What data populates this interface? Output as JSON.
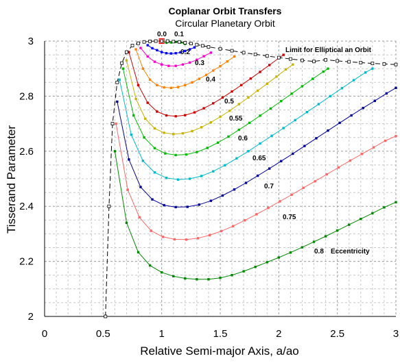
{
  "chart_data": {
    "type": "line",
    "title": "Coplanar Orbit Transfers",
    "subtitle": "Circular Planetary Orbit",
    "xlabel": "Relative Semi-major Axis, a/ao",
    "ylabel": "Tisserand Parameter",
    "xlim": [
      0,
      3
    ],
    "ylim": [
      2,
      3
    ],
    "xticks": [
      "0",
      "0.5",
      "1",
      "1.5",
      "2",
      "2.5",
      "3"
    ],
    "yticks": [
      "2",
      "2.2",
      "2.4",
      "2.6",
      "2.8",
      "3"
    ],
    "grid": true,
    "limit_label": "Limit for Elliptical an Orbit",
    "eccentricity_label": "Eccentricity",
    "series": [
      {
        "name": "0.0",
        "color": "#ff0000",
        "x": [
          1.0
        ],
        "y": [
          3.0
        ]
      },
      {
        "name": "0.1",
        "color": "#00aa00",
        "x": [
          1.0,
          1.04,
          1.08,
          1.12,
          1.16,
          1.2
        ],
        "y": [
          3.0,
          2.994,
          2.995,
          2.997,
          2.995,
          2.99
        ]
      },
      {
        "name": "0.2",
        "color": "#0000ff",
        "x": [
          0.88,
          0.92,
          0.96,
          1.0,
          1.04,
          1.08,
          1.12,
          1.16,
          1.2,
          1.24,
          1.28
        ],
        "y": [
          2.985,
          2.974,
          2.967,
          2.96,
          2.956,
          2.955,
          2.956,
          2.959,
          2.964,
          2.97,
          2.977
        ]
      },
      {
        "name": "0.3",
        "color": "#ff00cc",
        "x": [
          0.82,
          0.88,
          0.94,
          1.0,
          1.06,
          1.12,
          1.18,
          1.24,
          1.3,
          1.36,
          1.42
        ],
        "y": [
          2.975,
          2.944,
          2.925,
          2.915,
          2.91,
          2.91,
          2.915,
          2.922,
          2.932,
          2.945,
          2.958
        ]
      },
      {
        "name": "0.4",
        "color": "#ff8000",
        "x": [
          0.78,
          0.84,
          0.9,
          0.96,
          1.02,
          1.08,
          1.14,
          1.2,
          1.26,
          1.32,
          1.38,
          1.44,
          1.5,
          1.56,
          1.62
        ],
        "y": [
          2.97,
          2.9,
          2.86,
          2.84,
          2.832,
          2.83,
          2.833,
          2.84,
          2.85,
          2.863,
          2.877,
          2.893,
          2.909,
          2.926,
          2.944
        ]
      },
      {
        "name": "0.5",
        "color": "#cc0000",
        "x": [
          0.72,
          0.8,
          0.88,
          0.96,
          1.04,
          1.12,
          1.2,
          1.28,
          1.36,
          1.44,
          1.52,
          1.6,
          1.68,
          1.76,
          1.84,
          1.92,
          2.0,
          2.04
        ],
        "y": [
          2.96,
          2.84,
          2.776,
          2.744,
          2.73,
          2.727,
          2.731,
          2.741,
          2.756,
          2.774,
          2.795,
          2.817,
          2.84,
          2.864,
          2.888,
          2.913,
          2.938,
          2.95
        ]
      },
      {
        "name": "0.55",
        "color": "#c8b400",
        "x": [
          0.7,
          0.78,
          0.86,
          0.94,
          1.02,
          1.1,
          1.18,
          1.26,
          1.34,
          1.42,
          1.5,
          1.58,
          1.66,
          1.74,
          1.82,
          1.9,
          1.98,
          2.06,
          2.12
        ],
        "y": [
          2.93,
          2.79,
          2.718,
          2.683,
          2.667,
          2.662,
          2.665,
          2.673,
          2.687,
          2.705,
          2.725,
          2.747,
          2.771,
          2.795,
          2.82,
          2.845,
          2.871,
          2.897,
          2.915
        ]
      },
      {
        "name": "0.6",
        "color": "#00bb00",
        "x": [
          0.67,
          0.76,
          0.85,
          0.94,
          1.03,
          1.12,
          1.21,
          1.3,
          1.39,
          1.48,
          1.57,
          1.66,
          1.75,
          1.84,
          1.93,
          2.02,
          2.11,
          2.2,
          2.29,
          2.38,
          2.42
        ],
        "y": [
          2.9,
          2.73,
          2.65,
          2.611,
          2.592,
          2.586,
          2.588,
          2.597,
          2.612,
          2.631,
          2.653,
          2.678,
          2.703,
          2.729,
          2.755,
          2.782,
          2.809,
          2.836,
          2.863,
          2.889,
          2.9
        ]
      },
      {
        "name": "0.65",
        "color": "#00bbcc",
        "x": [
          0.64,
          0.74,
          0.84,
          0.94,
          1.04,
          1.14,
          1.24,
          1.34,
          1.44,
          1.54,
          1.64,
          1.74,
          1.84,
          1.94,
          2.04,
          2.14,
          2.24,
          2.34,
          2.44,
          2.54,
          2.64,
          2.74,
          2.8
        ],
        "y": [
          2.86,
          2.66,
          2.565,
          2.523,
          2.503,
          2.497,
          2.5,
          2.51,
          2.527,
          2.549,
          2.574,
          2.6,
          2.628,
          2.656,
          2.684,
          2.713,
          2.742,
          2.771,
          2.8,
          2.829,
          2.858,
          2.886,
          2.9
        ]
      },
      {
        "name": "0.7",
        "color": "#000099",
        "x": [
          0.62,
          0.72,
          0.82,
          0.92,
          1.02,
          1.12,
          1.22,
          1.32,
          1.42,
          1.52,
          1.62,
          1.72,
          1.82,
          1.92,
          2.02,
          2.12,
          2.22,
          2.32,
          2.42,
          2.52,
          2.62,
          2.72,
          2.82,
          2.92,
          3.0
        ],
        "y": [
          2.78,
          2.57,
          2.47,
          2.425,
          2.404,
          2.397,
          2.398,
          2.406,
          2.42,
          2.439,
          2.461,
          2.485,
          2.511,
          2.537,
          2.564,
          2.591,
          2.619,
          2.647,
          2.675,
          2.703,
          2.73,
          2.757,
          2.783,
          2.81,
          2.83
        ]
      },
      {
        "name": "0.75",
        "color": "#ff6666",
        "x": [
          0.61,
          0.71,
          0.81,
          0.91,
          1.01,
          1.11,
          1.21,
          1.31,
          1.41,
          1.51,
          1.61,
          1.71,
          1.81,
          1.91,
          2.01,
          2.11,
          2.21,
          2.31,
          2.41,
          2.51,
          2.61,
          2.71,
          2.81,
          2.91,
          3.0
        ],
        "y": [
          2.7,
          2.46,
          2.36,
          2.311,
          2.289,
          2.28,
          2.279,
          2.284,
          2.295,
          2.31,
          2.328,
          2.349,
          2.371,
          2.394,
          2.418,
          2.442,
          2.467,
          2.491,
          2.516,
          2.541,
          2.566,
          2.59,
          2.614,
          2.638,
          2.655
        ]
      },
      {
        "name": "0.8",
        "color": "#008800",
        "x": [
          0.6,
          0.7,
          0.8,
          0.9,
          1.0,
          1.1,
          1.2,
          1.3,
          1.4,
          1.5,
          1.6,
          1.7,
          1.8,
          1.9,
          2.0,
          2.1,
          2.2,
          2.3,
          2.4,
          2.5,
          2.6,
          2.7,
          2.8,
          2.9,
          3.0
        ],
        "y": [
          2.6,
          2.34,
          2.233,
          2.185,
          2.16,
          2.146,
          2.138,
          2.135,
          2.135,
          2.14,
          2.15,
          2.164,
          2.18,
          2.197,
          2.214,
          2.232,
          2.251,
          2.271,
          2.291,
          2.312,
          2.333,
          2.354,
          2.375,
          2.396,
          2.415
        ]
      },
      {
        "name": "Limit",
        "color": "#000000",
        "dashed": true,
        "x": [
          0.52,
          0.55,
          0.58,
          0.62,
          0.66,
          0.7,
          0.75,
          0.8,
          0.85,
          0.9,
          0.95,
          1.0,
          1.05,
          1.1,
          1.15,
          1.2,
          1.25,
          1.3,
          1.35,
          1.4,
          1.5,
          1.6,
          1.7,
          1.8,
          1.9,
          2.0,
          2.1,
          2.2,
          2.3,
          2.4,
          2.5,
          2.6,
          2.7,
          2.8,
          2.9,
          3.0
        ],
        "y": [
          2.0,
          2.4,
          2.7,
          2.85,
          2.92,
          2.96,
          2.984,
          2.992,
          2.997,
          2.999,
          3.0,
          3.0,
          3.0,
          2.998,
          2.997,
          2.994,
          2.991,
          2.987,
          2.983,
          2.979,
          2.972,
          2.965,
          2.958,
          2.952,
          2.946,
          2.94,
          2.935,
          2.93,
          2.926,
          2.932,
          2.928,
          2.925,
          2.922,
          2.919,
          2.917,
          2.915
        ]
      }
    ]
  }
}
